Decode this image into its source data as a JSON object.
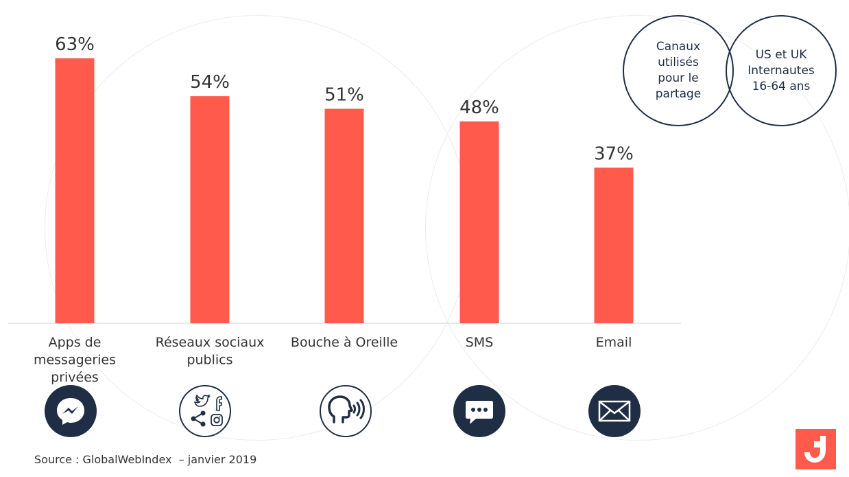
{
  "chart_data": {
    "type": "bar",
    "categories": [
      "Apps de\nmessageries\nprivées",
      "Réseaux sociaux\npublics",
      "Bouche à Oreille",
      "SMS",
      "Email"
    ],
    "values": [
      63,
      54,
      51,
      48,
      37
    ],
    "value_labels": [
      "63%",
      "54%",
      "51%",
      "48%",
      "37%"
    ],
    "ylim": [
      0,
      63
    ],
    "xlabel": "",
    "ylabel": "",
    "grid": false,
    "bar_color": "#ff5a4b"
  },
  "legend": {
    "left_circle": "Canaux\nutilisés\npour le\npartage",
    "right_circle": "US et UK\nInternautes\n16-64 ans"
  },
  "icons": [
    "messenger-icon",
    "social-share-icon",
    "speaking-head-icon",
    "chat-bubble-icon",
    "envelope-icon"
  ],
  "source": "Source : GlobalWebIndex  – janvier 2019",
  "colors": {
    "accent": "#ff5a4b",
    "navy": "#1f2d45",
    "text": "#333333"
  }
}
